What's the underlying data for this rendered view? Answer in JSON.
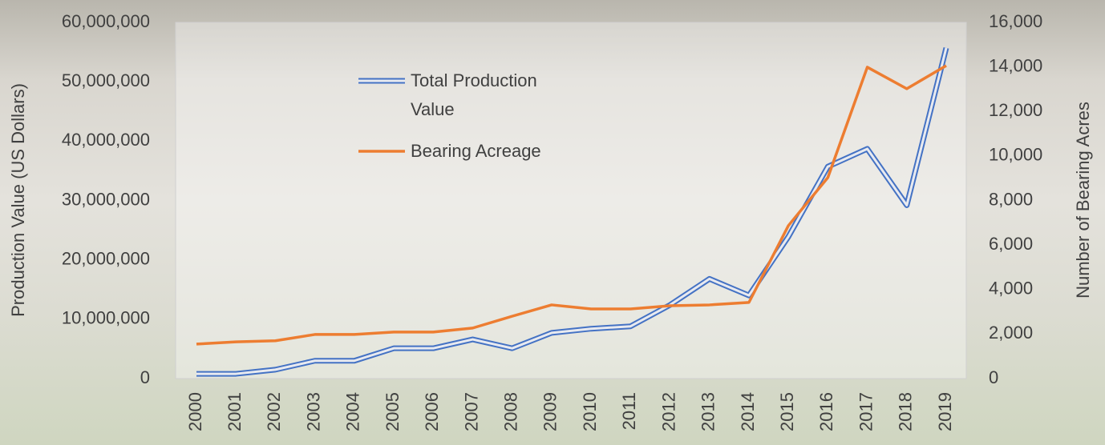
{
  "chart_data": {
    "type": "line",
    "categories": [
      "2000",
      "2001",
      "2002",
      "2003",
      "2004",
      "2005",
      "2006",
      "2007",
      "2008",
      "2009",
      "2010",
      "2011",
      "2012",
      "2013",
      "2014",
      "2015",
      "2016",
      "2017",
      "2018",
      "2019"
    ],
    "series": [
      {
        "name": "Total Production Value",
        "color": "#4472c4",
        "axis": "y",
        "values": [
          800000,
          800000,
          1500000,
          3000000,
          3000000,
          5100000,
          5100000,
          6600000,
          5100000,
          7700000,
          8400000,
          8800000,
          12400000,
          16800000,
          14000000,
          23900000,
          35700000,
          38700000,
          29200000,
          55700000
        ]
      },
      {
        "name": "Bearing Acreage",
        "color": "#ed7d31",
        "axis": "y2",
        "values": [
          1550,
          1650,
          1700,
          1980,
          1980,
          2090,
          2090,
          2270,
          2800,
          3310,
          3130,
          3130,
          3270,
          3310,
          3420,
          6870,
          9030,
          13990,
          13020,
          14060
        ]
      }
    ],
    "y_label": "Production Value (US Dollars)",
    "y2_label": "Number of Bearing Acres",
    "ylim": [
      0,
      60000000
    ],
    "yticks": [
      0,
      {
        "value": 10000000,
        "label": "10,000,000"
      },
      {
        "value": 20000000,
        "label": "20,000,000"
      },
      {
        "value": 30000000,
        "label": "30,000,000"
      },
      {
        "value": 40000000,
        "label": "40,000,000"
      },
      {
        "value": 50000000,
        "label": "50,000,000"
      },
      {
        "value": 60000000,
        "label": "60,000,000"
      }
    ],
    "y2lim": [
      0,
      16000
    ],
    "y2ticks": [
      0,
      {
        "value": 2000,
        "label": "2,000"
      },
      {
        "value": 4000,
        "label": "4,000"
      },
      {
        "value": 6000,
        "label": "6,000"
      },
      {
        "value": 8000,
        "label": "8,000"
      },
      {
        "value": 10000,
        "label": "10,000"
      },
      {
        "value": 12000,
        "label": "12,000"
      },
      {
        "value": 14000,
        "label": "14,000"
      },
      {
        "value": 16000,
        "label": "16,000"
      }
    ]
  }
}
